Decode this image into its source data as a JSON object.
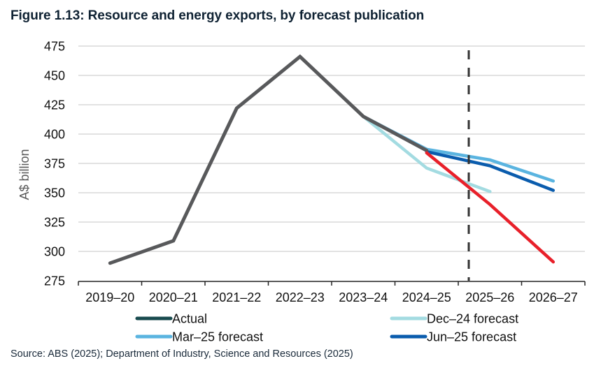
{
  "title": "Figure 1.13: Resource and energy exports, by forecast publication",
  "source": "Source: ABS (2025); Department of Industry, Science and Resources (2025)",
  "chart_data": {
    "type": "line",
    "title": "Figure 1.13: Resource and energy exports, by forecast publication",
    "xlabel": "",
    "ylabel": "A$ billion",
    "ylim": [
      275,
      475
    ],
    "yticks": [
      275,
      300,
      325,
      350,
      375,
      400,
      425,
      450,
      475
    ],
    "grid": true,
    "categories": [
      "2019–20",
      "2020–21",
      "2021–22",
      "2022–23",
      "2023–24",
      "2024–25",
      "2025–26",
      "2026–27"
    ],
    "series": [
      {
        "name": "Actual",
        "color": "#58595b",
        "legend_color": "#174a4e",
        "values": [
          290,
          309,
          422,
          466,
          415,
          386,
          null,
          null
        ]
      },
      {
        "name": "Dec–24 forecast",
        "color": "#a3dbe1",
        "values": [
          null,
          null,
          null,
          null,
          415,
          371,
          351,
          null
        ]
      },
      {
        "name": "Mar–25 forecast",
        "color": "#5ab4e0",
        "values": [
          null,
          null,
          null,
          null,
          415,
          387,
          378,
          360
        ]
      },
      {
        "name": "Jun–25 forecast",
        "color": "#0a5cad",
        "values": [
          null,
          null,
          null,
          null,
          null,
          385,
          373,
          352
        ]
      },
      {
        "name": "",
        "color": "#e8202a",
        "legend": false,
        "values": [
          null,
          null,
          null,
          null,
          null,
          384,
          340,
          291
        ]
      }
    ],
    "annotations": [
      {
        "type": "vertical-dashed-line",
        "between": [
          "2024–25",
          "2025–26"
        ],
        "color": "#333333"
      }
    ],
    "legend": {
      "placement": "bottom",
      "entries": [
        "Actual",
        "Dec–24 forecast",
        "Mar–25 forecast",
        "Jun–25 forecast"
      ]
    }
  }
}
